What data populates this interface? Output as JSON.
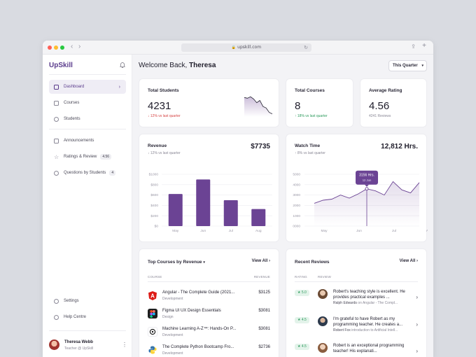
{
  "browser": {
    "url": "upskill.com"
  },
  "sidebar": {
    "brand": "UpSkill",
    "items": [
      {
        "label": "Dashboard"
      },
      {
        "label": "Courses"
      },
      {
        "label": "Students"
      },
      {
        "label": "Announcements"
      },
      {
        "label": "Ratings & Review",
        "badge": "4.56"
      },
      {
        "label": "Questions by Students",
        "badge": "4"
      }
    ],
    "bottom": [
      {
        "label": "Settings"
      },
      {
        "label": "Help Centre"
      }
    ],
    "user": {
      "name": "Theresa Webb",
      "role": "Teacher @ UpSkill"
    }
  },
  "header": {
    "greeting": "Welcome Back,",
    "name": "Theresa",
    "period": "This Quarter"
  },
  "stats": {
    "students": {
      "label": "Total Students",
      "value": "4231",
      "change": "12% vs last quarter",
      "trend_points": [
        26,
        25,
        27,
        24,
        19,
        22,
        14,
        12,
        6,
        4
      ]
    },
    "courses": {
      "label": "Total Courses",
      "value": "8",
      "change": "18% vs last quarter"
    },
    "rating": {
      "label": "Average Rating",
      "value": "4.56",
      "note": "4241 Reviews"
    }
  },
  "revenue": {
    "label": "Revenue",
    "value": "$7735",
    "change": "12% vs last quarter"
  },
  "watch": {
    "label": "Watch Time",
    "value": "12,812 Hrs.",
    "change": "8% vs last quarter",
    "tooltip_value": "3156 Hrs.",
    "tooltip_date": "12 Jun"
  },
  "chart_data": [
    {
      "type": "bar",
      "title": "Revenue",
      "categories": [
        "May",
        "Jun",
        "Jul",
        "Aug"
      ],
      "values": [
        620,
        900,
        500,
        330
      ],
      "ylim": [
        0,
        1000
      ],
      "y_ticks": [
        "$0",
        "$200",
        "$400",
        "$600",
        "$800",
        "$1000"
      ],
      "color": "#6b4394",
      "grid": true
    },
    {
      "type": "area",
      "title": "Watch Time",
      "categories": [
        "May",
        "Jun",
        "Jul",
        "Aug"
      ],
      "x": [
        0,
        0.5,
        1,
        1.5,
        2,
        2.5,
        3,
        3.5,
        4,
        4.5,
        5,
        5.5,
        6
      ],
      "values": [
        2200,
        2500,
        2600,
        3000,
        2700,
        3100,
        3600,
        3400,
        3000,
        4300,
        3500,
        3200,
        4200
      ],
      "ylim": [
        0,
        5000
      ],
      "y_ticks": [
        "0000",
        "1000",
        "2000",
        "3000",
        "4000",
        "5000"
      ],
      "highlight_index": 6,
      "color": "#6b4394",
      "grid": true
    }
  ],
  "top_courses": {
    "title": "Top Courses by Revenue",
    "link": "View All",
    "col_course": "COURSE",
    "col_revenue": "REVENUE",
    "rows": [
      {
        "title": "Angular - The Complete Guide (2021...",
        "category": "Development",
        "amount": "$3125",
        "logo": "A",
        "color": "#dd1b16"
      },
      {
        "title": "Figma UI UX Design Essentials",
        "category": "Design",
        "amount": "$3081",
        "logo": "F",
        "color": "#1e1e1e"
      },
      {
        "title": "Machine Learning A-Z™: Hands-On P...",
        "category": "Development",
        "amount": "$3081",
        "logo": "O",
        "color": "#ffffff"
      },
      {
        "title": "The Complete Python Bootcamp Fro...",
        "category": "Development",
        "amount": "$2736",
        "logo": "P",
        "color": "#3776ab"
      }
    ]
  },
  "reviews": {
    "title": "Recent Reviews",
    "link": "View All",
    "col_rating": "RATING",
    "col_review": "REVIEW",
    "rows": [
      {
        "rating": "★ 5.0",
        "text": "Robert's teaching style is excellent. He provides practical examples ...",
        "author": "Ralph Edwards",
        "course": "on Angular - The Compl...",
        "avatar": "#c9a58a"
      },
      {
        "rating": "★ 4.5",
        "text": "I'm grateful to have Robert as my programming teacher. He creates a...",
        "author": "Robert Fox",
        "course": "introduction to Artificial Intell...",
        "avatar": "#3b4a5e"
      },
      {
        "rating": "★ 4.5",
        "text": "Robert is an exceptional programming teacher! His explanati...",
        "author": "",
        "course": "",
        "avatar": "#d8b49c"
      }
    ]
  }
}
